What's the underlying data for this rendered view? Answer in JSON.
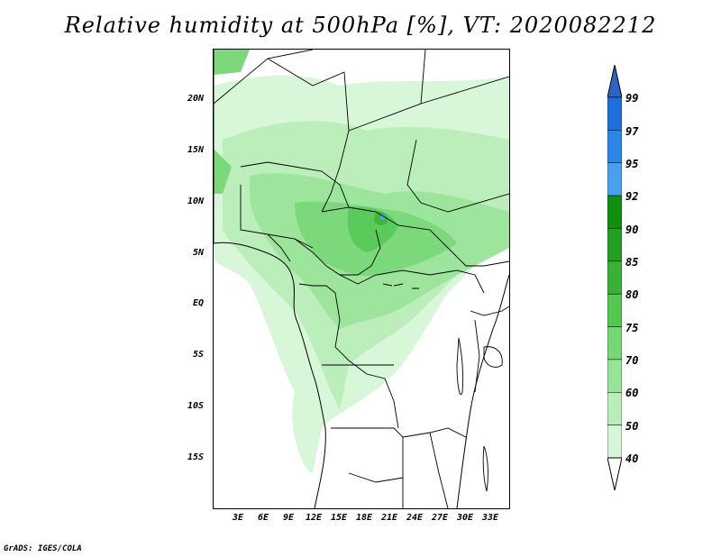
{
  "title": "Relative humidity at 500hPa [%], VT: 2020082212",
  "credit": "GrADS: IGES/COLA",
  "lat_labels": [
    "20N",
    "15N",
    "10N",
    "5N",
    "EQ",
    "5S",
    "10S",
    "15S"
  ],
  "lon_labels": [
    "3E",
    "6E",
    "9E",
    "12E",
    "15E",
    "18E",
    "21E",
    "24E",
    "27E",
    "30E",
    "33E"
  ],
  "colorbar": {
    "levels": [
      "99",
      "97",
      "95",
      "92",
      "90",
      "85",
      "80",
      "75",
      "70",
      "60",
      "50",
      "40"
    ],
    "colors": [
      "#1e6fd9",
      "#2b86e8",
      "#4aa0f0",
      "#0f8f0f",
      "#23a023",
      "#37b237",
      "#52c852",
      "#74d874",
      "#98e498",
      "#b8eeb8",
      "#d6f6d6",
      "#effcef"
    ],
    "top_color": "#2a66c8"
  }
}
